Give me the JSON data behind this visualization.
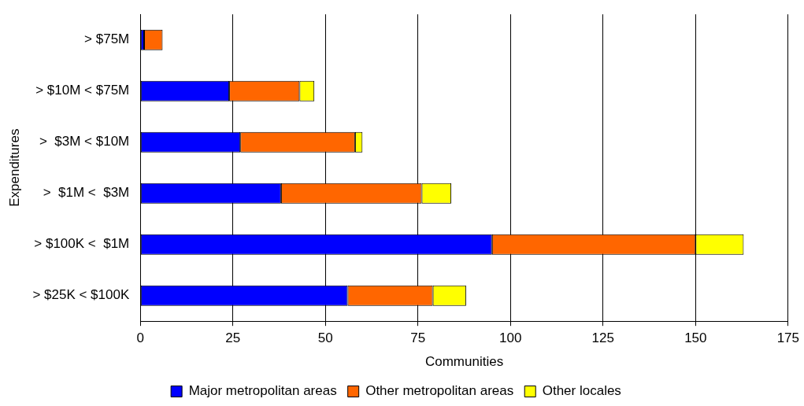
{
  "chart_data": {
    "type": "bar",
    "orientation": "horizontal",
    "stacked": true,
    "xlabel": "Communities",
    "ylabel": "Expenditures",
    "categories": [
      "> $75M",
      "> $10M < $75M",
      ">  $3M < $10M",
      ">  $1M <  $3M",
      "> $100K <  $1M",
      "> $25K < $100K"
    ],
    "series": [
      {
        "name": "Major metropolitan areas",
        "color": "#0000ff",
        "values": [
          1,
          24,
          27,
          38,
          95,
          56
        ]
      },
      {
        "name": "Other metropolitan areas",
        "color": "#ff6600",
        "values": [
          5,
          19,
          31,
          38,
          55,
          23
        ]
      },
      {
        "name": "Other locales",
        "color": "#ffff00",
        "values": [
          0,
          4,
          2,
          8,
          13,
          9
        ]
      }
    ],
    "xlim": [
      0,
      175
    ],
    "xticks": [
      0,
      25,
      50,
      75,
      100,
      125,
      150,
      175
    ],
    "grid": "x",
    "legend": "bottom"
  }
}
